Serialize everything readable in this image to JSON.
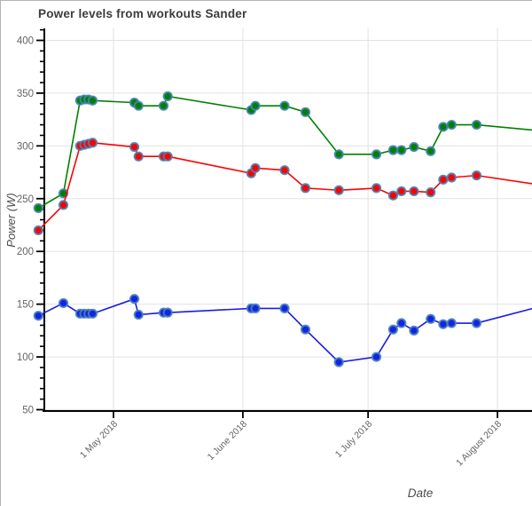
{
  "window": {
    "background": "#ffffff",
    "border_color": "#b4b4b4"
  },
  "chart_data": {
    "type": "line",
    "title": "Power levels from workouts Sander",
    "xlabel": "Date",
    "ylabel": "Power (W)",
    "grid": true,
    "legend": "none",
    "ylim": [
      50,
      411
    ],
    "y_major_ticks": [
      50,
      100,
      150,
      200,
      250,
      300,
      350,
      400
    ],
    "y_minor_step": 10,
    "x_tick_labels": [
      "1 May 2018",
      "1 June 2018",
      "1 July 2018",
      "1 August 2018"
    ],
    "x_tick_day_offsets": [
      0,
      31,
      61,
      92
    ],
    "x_day_range": [
      -19,
      100.5
    ],
    "x_dates": [
      "2018-04-13",
      "2018-04-19",
      "2018-04-23",
      "2018-04-24",
      "2018-04-25",
      "2018-04-26",
      "2018-05-06",
      "2018-05-07",
      "2018-05-13",
      "2018-05-14",
      "2018-06-03",
      "2018-06-04",
      "2018-06-11",
      "2018-06-16",
      "2018-06-24",
      "2018-07-03",
      "2018-07-07",
      "2018-07-09",
      "2018-07-12",
      "2018-07-16",
      "2018-07-19",
      "2018-07-21",
      "2018-07-27",
      "2018-08-09"
    ],
    "x_day_offsets": [
      -18,
      -12,
      -8,
      -7,
      -6,
      -5,
      5,
      6,
      12,
      13,
      33,
      34,
      41,
      46,
      54,
      63,
      67,
      69,
      72,
      76,
      79,
      81,
      87,
      100.5
    ],
    "note_last_point": "last x is the line endpoint clipped at the right plot edge; no marker drawn there",
    "series": [
      {
        "name": "green-series",
        "line_color": "#008000",
        "marker_fill": "#008000",
        "values": [
          241,
          255,
          343,
          344,
          344,
          343,
          341,
          338,
          338,
          347,
          334,
          338,
          338,
          332,
          292,
          292,
          296,
          296,
          299,
          295,
          318,
          320,
          320,
          315
        ]
      },
      {
        "name": "red-series",
        "line_color": "#fe0000",
        "marker_fill": "#fe0000",
        "values": [
          220,
          244,
          300,
          301,
          302,
          303,
          299,
          290,
          290,
          290,
          274,
          279,
          277,
          260,
          258,
          260,
          253,
          257,
          257,
          256,
          268,
          270,
          272,
          264
        ]
      },
      {
        "name": "blue-series",
        "line_color": "#1a1ae6",
        "marker_fill": "#1523e8",
        "values": [
          139,
          151,
          141,
          141,
          141,
          141,
          155,
          140,
          142,
          142,
          146,
          146,
          146,
          126,
          95,
          100,
          126,
          132,
          125,
          136,
          131,
          132,
          132,
          146
        ]
      }
    ],
    "style": {
      "marker_edge_color": "#4682b4",
      "grid_color": "#e2e2e2",
      "axis_color": "#000000",
      "tick_label_color": "#646464"
    }
  }
}
